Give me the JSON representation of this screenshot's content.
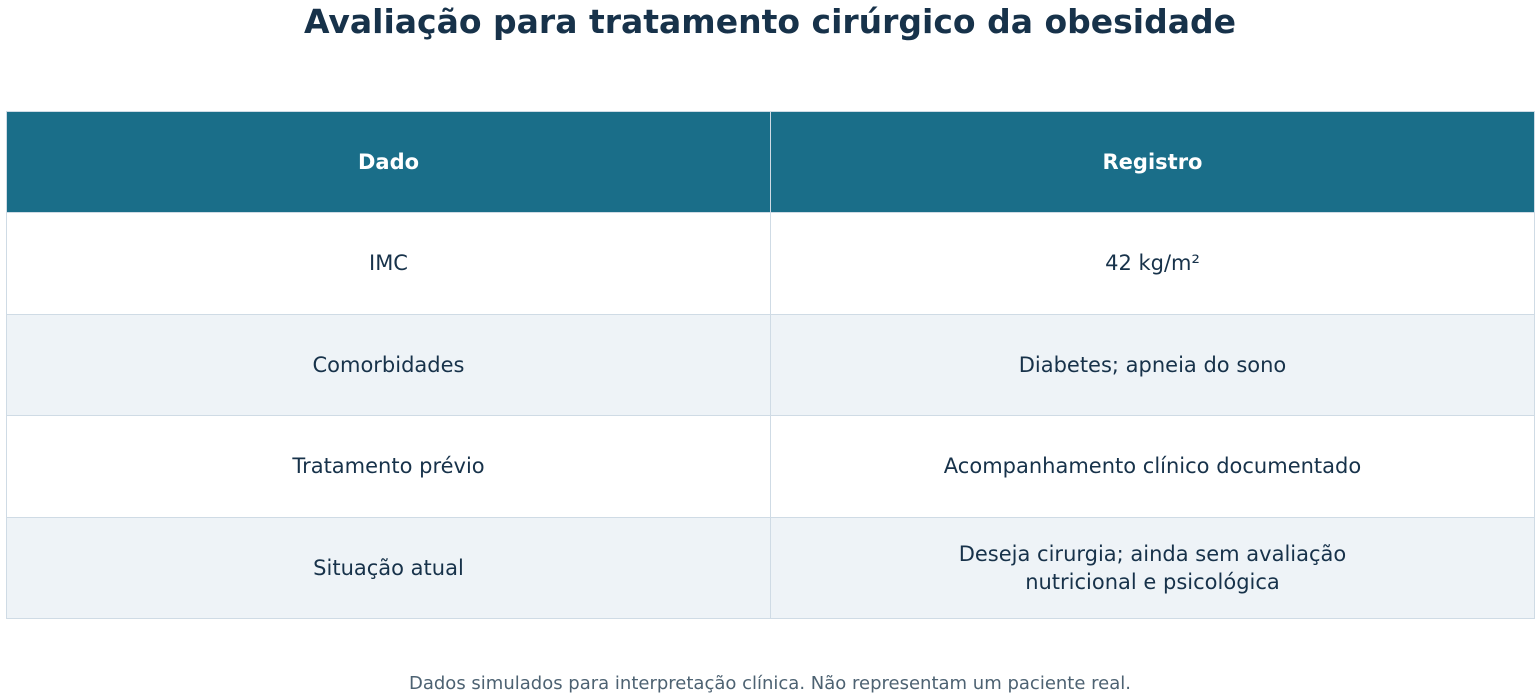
{
  "title": "Avaliação para tratamento cirúrgico da obesidade",
  "table": {
    "headers": [
      "Dado",
      "Registro"
    ],
    "rows": [
      [
        "IMC",
        "42 kg/m²"
      ],
      [
        "Comorbidades",
        "Diabetes; apneia do sono"
      ],
      [
        "Tratamento prévio",
        "Acompanhamento clínico documentado"
      ],
      [
        "Situação atual",
        "Deseja cirurgia; ainda sem avaliação nutricional e psicológica"
      ]
    ]
  },
  "footnote": "Dados simulados para interpretação clínica. Não representam um paciente real.",
  "colors": {
    "header_bg": "#1a6e89",
    "title_text": "#17324a",
    "alt_row_bg": "#eef3f7",
    "border": "#cfdbe5"
  }
}
